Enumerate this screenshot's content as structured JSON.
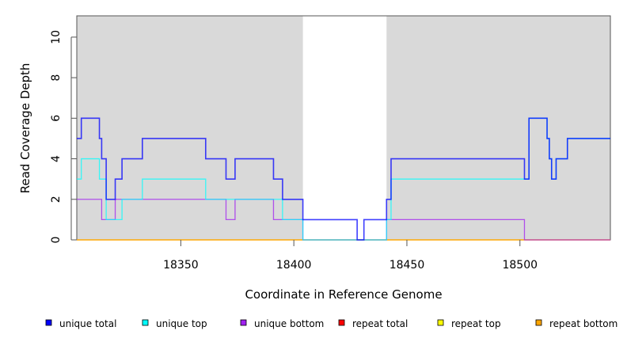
{
  "chart_data": {
    "type": "line",
    "step": true,
    "title": "",
    "xlabel": "Coordinate in Reference Genome",
    "ylabel": "Read Coverage Depth",
    "xlim": [
      18304,
      18540
    ],
    "ylim": [
      0,
      11.05
    ],
    "xticks": [
      18350,
      18400,
      18450,
      18500
    ],
    "xtick_labels": [
      "18350",
      "18400",
      "18450",
      "18500"
    ],
    "yticks": [
      0,
      2,
      4,
      6,
      8,
      10
    ],
    "ytick_labels": [
      "0",
      "2",
      "4",
      "6",
      "8",
      "10"
    ],
    "shaded_regions": [
      {
        "from": 18304,
        "to": 18404,
        "color": "#d9d9d9"
      },
      {
        "from": 18441,
        "to": 18540,
        "color": "#d9d9d9"
      }
    ],
    "legend_position": "bottom",
    "series": [
      {
        "name": "repeat total",
        "color": "#ff0000",
        "x": [
          18304,
          18540
        ],
        "y": [
          0,
          0
        ]
      },
      {
        "name": "repeat top",
        "color": "#ffff00",
        "x": [
          18304,
          18540
        ],
        "y": [
          0,
          0
        ]
      },
      {
        "name": "repeat bottom",
        "color": "#ffa500",
        "x": [
          18304,
          18540
        ],
        "y": [
          0,
          0
        ]
      },
      {
        "name": "unique bottom",
        "color": "#a020f0",
        "x": [
          18304,
          18315,
          18321,
          18370,
          18374,
          18391,
          18404,
          18441,
          18502,
          18540
        ],
        "y": [
          2,
          1,
          2,
          1,
          2,
          1,
          0,
          1,
          0,
          0
        ]
      },
      {
        "name": "unique top",
        "color": "#00ffff",
        "x": [
          18304,
          18306,
          18314,
          18317,
          18324,
          18333,
          18361,
          18395,
          18404,
          18441,
          18443,
          18504,
          18512,
          18513,
          18514,
          18516,
          18521,
          18540
        ],
        "y": [
          3,
          4,
          3,
          1,
          2,
          3,
          2,
          1,
          0,
          1,
          3,
          6,
          5,
          4,
          3,
          4,
          5,
          5
        ]
      },
      {
        "name": "unique total",
        "color": "#0000ff",
        "x": [
          18304,
          18306,
          18314,
          18315,
          18317,
          18321,
          18324,
          18333,
          18361,
          18370,
          18374,
          18391,
          18395,
          18404,
          18428,
          18431,
          18441,
          18443,
          18502,
          18504,
          18512,
          18513,
          18514,
          18516,
          18521,
          18540
        ],
        "y": [
          5,
          6,
          5,
          4,
          2,
          3,
          4,
          5,
          4,
          3,
          4,
          3,
          2,
          1,
          0,
          1,
          2,
          4,
          3,
          6,
          5,
          4,
          3,
          4,
          5,
          5
        ]
      }
    ],
    "legend": [
      {
        "label": "unique total",
        "color": "#0000ff"
      },
      {
        "label": "unique top",
        "color": "#00ffff"
      },
      {
        "label": "unique bottom",
        "color": "#a020f0"
      },
      {
        "label": "repeat total",
        "color": "#ff0000"
      },
      {
        "label": "repeat top",
        "color": "#ffff00"
      },
      {
        "label": "repeat bottom",
        "color": "#ffa500"
      }
    ]
  }
}
